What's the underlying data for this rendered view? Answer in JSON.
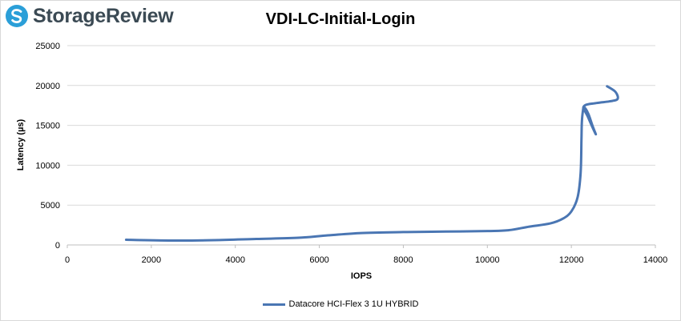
{
  "brand": {
    "name": "StorageReview",
    "logo_icon": "storagereview-logo-icon"
  },
  "chart_data": {
    "type": "line",
    "title": "VDI-LC-Initial-Login",
    "xlabel": "IOPS",
    "ylabel": "Latency (µs)",
    "xlim": [
      0,
      14000
    ],
    "ylim": [
      0,
      25000
    ],
    "xticks": [
      0,
      2000,
      4000,
      6000,
      8000,
      10000,
      12000,
      14000
    ],
    "yticks": [
      0,
      5000,
      10000,
      15000,
      20000,
      25000
    ],
    "grid": "horizontal",
    "legend_position": "bottom",
    "series": [
      {
        "name": "Datacore HCI-Flex 3 1U HYBRID",
        "color": "#4a76b3",
        "x": [
          1400,
          2500,
          3500,
          4500,
          5500,
          6200,
          7000,
          8000,
          9000,
          10000,
          10500,
          11000,
          11500,
          11800,
          12000,
          12150,
          12220,
          12240,
          12250,
          12280,
          12300,
          12400,
          12500,
          12580,
          12400,
          12300,
          12600,
          12900,
          13100,
          13050,
          12850
        ],
        "y": [
          650,
          550,
          600,
          750,
          900,
          1200,
          1500,
          1620,
          1680,
          1750,
          1850,
          2300,
          2700,
          3300,
          4200,
          6000,
          9000,
          13000,
          15500,
          17000,
          17300,
          16500,
          15000,
          13900,
          16000,
          17400,
          17800,
          18000,
          18300,
          19200,
          19900
        ]
      }
    ]
  }
}
